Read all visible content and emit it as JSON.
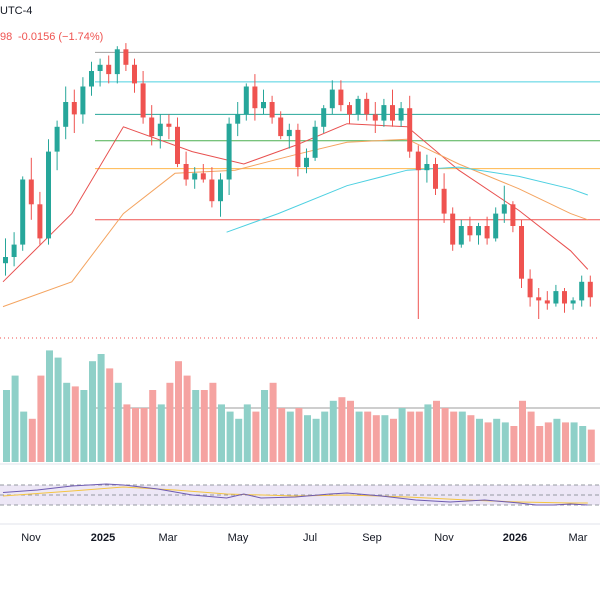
{
  "header": {
    "timezone": "UTC-4",
    "price_fragment": "98",
    "change": "-0.0156 (−1.74%)"
  },
  "colors": {
    "up": "#26a69a",
    "down": "#ef5350",
    "vol_up": "#8fd0c8",
    "vol_down": "#f5a3a1",
    "ma_fast": "#e8504f",
    "ma_mid": "#f4a460",
    "ma_slow": "#4dd0e1",
    "rsi_line": "#6e5bb2",
    "rsi_ma": "#f5c542",
    "rsi_band": "#ede7f6",
    "level_grey": "#9e9e9e",
    "level_cyan": "#4dd0e1",
    "level_teal": "#26a69a",
    "level_green": "#4caf50",
    "level_orange": "#ffb74d",
    "level_red": "#ef5350"
  },
  "chart_data": {
    "type": "candlestick",
    "x_ticks": [
      "Nov",
      "2025",
      "Mar",
      "May",
      "Jul",
      "Sep",
      "Nov",
      "2026",
      "Mar"
    ],
    "ylim": [
      0,
      100
    ],
    "horizontal_levels": [
      {
        "value": 96,
        "color": "level_grey"
      },
      {
        "value": 86.5,
        "color": "level_cyan"
      },
      {
        "value": 76,
        "color": "level_teal"
      },
      {
        "value": 67.5,
        "color": "level_green"
      },
      {
        "value": 58.5,
        "color": "level_orange"
      },
      {
        "value": 42,
        "color": "level_red"
      }
    ],
    "candles": [
      [
        28,
        36,
        24,
        30
      ],
      [
        30,
        38,
        27,
        34
      ],
      [
        34,
        56,
        32,
        55
      ],
      [
        55,
        62,
        42,
        47
      ],
      [
        47,
        51,
        34,
        36
      ],
      [
        36,
        68,
        34,
        64
      ],
      [
        64,
        74,
        58,
        72
      ],
      [
        72,
        85,
        68,
        80
      ],
      [
        80,
        84,
        70,
        76
      ],
      [
        76,
        88,
        73,
        85
      ],
      [
        85,
        93,
        82,
        90
      ],
      [
        90,
        94,
        85,
        92
      ],
      [
        92,
        95,
        86,
        89
      ],
      [
        89,
        98,
        86,
        97
      ],
      [
        97,
        99,
        90,
        92
      ],
      [
        92,
        94,
        83,
        86
      ],
      [
        86,
        90,
        73,
        75
      ],
      [
        75,
        79,
        66,
        69
      ],
      [
        69,
        76,
        65,
        73
      ],
      [
        73,
        76,
        68,
        72
      ],
      [
        72,
        75,
        59,
        60
      ],
      [
        60,
        64,
        53,
        55
      ],
      [
        55,
        59,
        52,
        57
      ],
      [
        57,
        60,
        54,
        55
      ],
      [
        55,
        59,
        46,
        48
      ],
      [
        48,
        57,
        43,
        55
      ],
      [
        55,
        75,
        50,
        73
      ],
      [
        73,
        80,
        69,
        76
      ],
      [
        76,
        86,
        74,
        85
      ],
      [
        85,
        89,
        74,
        78
      ],
      [
        78,
        84,
        76,
        80
      ],
      [
        80,
        82,
        73,
        75
      ],
      [
        75,
        77,
        68,
        69
      ],
      [
        69,
        73,
        65,
        71
      ],
      [
        71,
        73,
        56,
        59
      ],
      [
        59,
        65,
        57,
        62
      ],
      [
        62,
        74,
        61,
        72
      ],
      [
        72,
        79,
        70,
        78
      ],
      [
        78,
        87,
        76,
        84
      ],
      [
        84,
        87,
        77,
        79
      ],
      [
        79,
        80,
        73,
        76
      ],
      [
        76,
        82,
        74,
        81
      ],
      [
        81,
        83,
        74,
        76
      ],
      [
        76,
        80,
        70,
        74
      ],
      [
        74,
        81,
        72,
        79
      ],
      [
        79,
        84,
        72,
        74
      ],
      [
        74,
        80,
        72,
        78
      ],
      [
        78,
        82,
        62,
        64
      ],
      [
        64,
        66,
        10,
        58
      ],
      [
        58,
        63,
        54,
        60
      ],
      [
        60,
        62,
        50,
        52
      ],
      [
        52,
        57,
        41,
        44
      ],
      [
        44,
        46,
        32,
        34
      ],
      [
        34,
        42,
        33,
        40
      ],
      [
        40,
        43,
        35,
        37
      ],
      [
        37,
        41,
        34,
        40
      ],
      [
        40,
        43,
        34,
        36
      ],
      [
        36,
        46,
        35,
        44
      ],
      [
        44,
        53,
        41,
        47
      ],
      [
        47,
        48,
        38,
        40
      ],
      [
        40,
        42,
        20,
        23
      ],
      [
        23,
        26,
        14,
        17
      ],
      [
        17,
        20,
        10,
        16
      ],
      [
        16,
        19,
        13,
        15
      ],
      [
        15,
        21,
        14,
        19
      ],
      [
        19,
        20,
        12,
        15
      ],
      [
        15,
        17,
        13,
        16
      ],
      [
        16,
        24,
        14,
        22
      ],
      [
        22,
        24,
        14,
        17
      ]
    ],
    "ma_fast": [
      [
        0,
        22
      ],
      [
        8,
        44
      ],
      [
        14,
        72
      ],
      [
        22,
        64
      ],
      [
        28,
        60
      ],
      [
        34,
        66
      ],
      [
        40,
        73
      ],
      [
        47,
        72
      ],
      [
        53,
        58
      ],
      [
        60,
        45
      ],
      [
        66,
        32
      ],
      [
        68,
        26
      ]
    ],
    "ma_mid": [
      [
        0,
        14
      ],
      [
        8,
        22
      ],
      [
        14,
        44
      ],
      [
        20,
        57
      ],
      [
        27,
        58
      ],
      [
        34,
        63
      ],
      [
        40,
        67
      ],
      [
        47,
        68
      ],
      [
        53,
        60
      ],
      [
        60,
        52
      ],
      [
        66,
        44
      ],
      [
        68,
        42
      ]
    ],
    "ma_slow": [
      [
        26,
        38
      ],
      [
        32,
        44
      ],
      [
        40,
        53
      ],
      [
        47,
        58
      ],
      [
        53,
        59
      ],
      [
        60,
        56
      ],
      [
        66,
        52
      ],
      [
        68,
        50
      ]
    ],
    "volume": [
      40,
      48,
      28,
      24,
      48,
      62,
      58,
      44,
      42,
      40,
      56,
      60,
      52,
      44,
      32,
      30,
      30,
      40,
      32,
      44,
      56,
      48,
      40,
      40,
      44,
      32,
      28,
      24,
      32,
      28,
      40,
      44,
      30,
      28,
      30,
      26,
      24,
      28,
      34,
      36,
      34,
      28,
      28,
      26,
      26,
      24,
      30,
      28,
      28,
      32,
      34,
      30,
      28,
      28,
      26,
      24,
      22,
      24,
      22,
      20,
      34,
      28,
      20,
      22,
      24,
      22,
      22,
      20,
      18
    ],
    "rsi": [
      [
        0,
        55
      ],
      [
        4,
        60
      ],
      [
        8,
        68
      ],
      [
        12,
        72
      ],
      [
        14,
        70
      ],
      [
        18,
        62
      ],
      [
        22,
        50
      ],
      [
        26,
        44
      ],
      [
        28,
        52
      ],
      [
        30,
        44
      ],
      [
        34,
        46
      ],
      [
        38,
        52
      ],
      [
        40,
        54
      ],
      [
        44,
        48
      ],
      [
        48,
        40
      ],
      [
        52,
        36
      ],
      [
        56,
        40
      ],
      [
        60,
        34
      ],
      [
        62,
        30
      ],
      [
        64,
        30
      ],
      [
        66,
        32
      ],
      [
        68,
        30
      ]
    ],
    "rsi_ma": [
      [
        0,
        48
      ],
      [
        8,
        58
      ],
      [
        14,
        66
      ],
      [
        20,
        60
      ],
      [
        26,
        52
      ],
      [
        34,
        48
      ],
      [
        40,
        50
      ],
      [
        47,
        46
      ],
      [
        54,
        40
      ],
      [
        60,
        36
      ],
      [
        66,
        34
      ],
      [
        68,
        34
      ]
    ]
  }
}
